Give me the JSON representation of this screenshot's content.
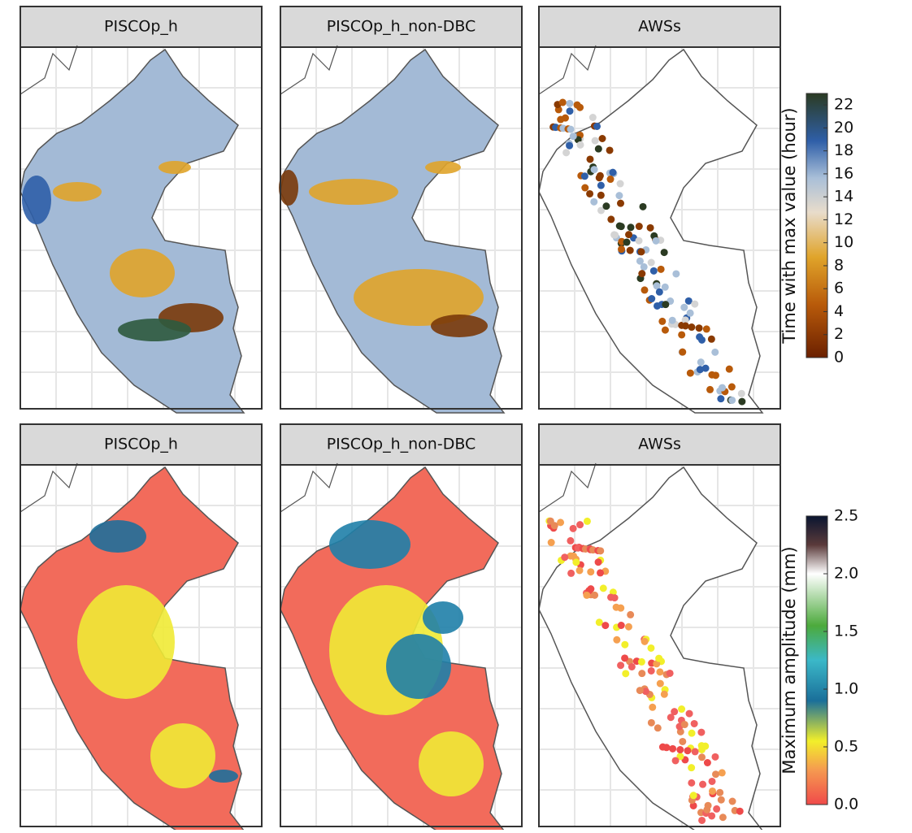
{
  "rows": [
    {
      "panels": [
        "PISCOp_h",
        "PISCOp_h_non-DBC",
        "AWSs"
      ],
      "legend": {
        "title": "Time with max value (hour)",
        "range": [
          0,
          23
        ],
        "ticks": [
          0,
          2,
          4,
          6,
          8,
          10,
          12,
          14,
          16,
          18,
          20,
          22
        ]
      }
    },
    {
      "panels": [
        "PISCOp_h",
        "PISCOp_h_non-DBC",
        "AWSs"
      ],
      "legend": {
        "title": "Maximum amplitude (mm)",
        "range": [
          0,
          2.5
        ],
        "ticks": [
          {
            "value": 0,
            "label": "0.0"
          },
          {
            "value": 0.5,
            "label": "0.5"
          },
          {
            "value": 1,
            "label": "1.0"
          },
          {
            "value": 1.5,
            "label": "1.5"
          },
          {
            "value": 2,
            "label": "2.0"
          },
          {
            "value": 2.5,
            "label": "2.5"
          }
        ]
      }
    }
  ]
}
